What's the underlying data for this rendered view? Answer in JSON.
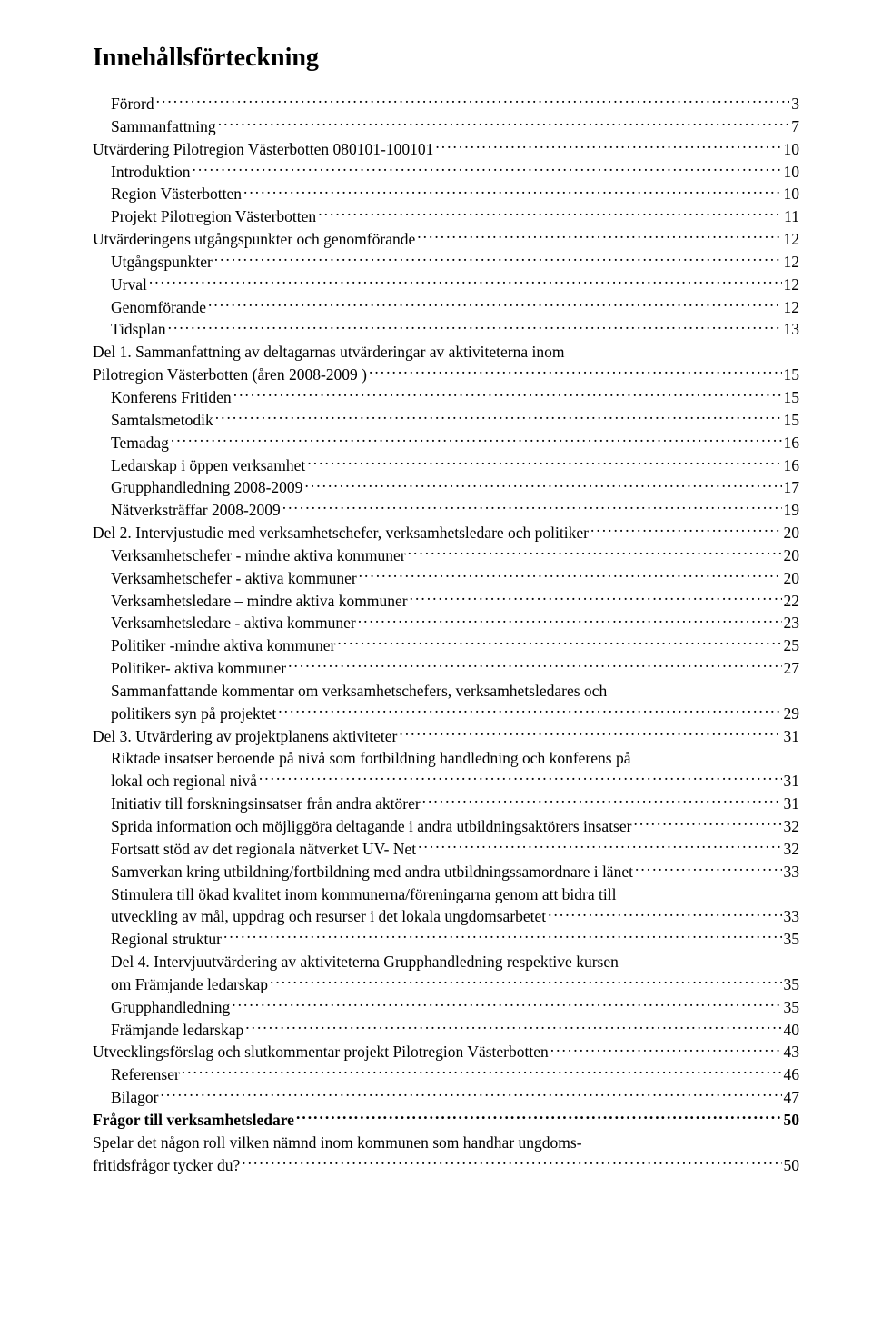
{
  "title": "Innehållsförteckning",
  "toc": [
    {
      "label": "Förord",
      "page": "3",
      "indent": 1,
      "bold": false
    },
    {
      "label": "Sammanfattning",
      "page": "7",
      "indent": 1,
      "bold": false
    },
    {
      "label": "Utvärdering Pilotregion Västerbotten 080101-100101",
      "page": "10",
      "indent": 0,
      "bold": false
    },
    {
      "label": "Introduktion",
      "page": "10",
      "indent": 1,
      "bold": false
    },
    {
      "label": "Region Västerbotten",
      "page": "10",
      "indent": 1,
      "bold": false
    },
    {
      "label": "Projekt Pilotregion Västerbotten",
      "page": "11",
      "indent": 1,
      "bold": false
    },
    {
      "label": "Utvärderingens utgångspunkter och genomförande",
      "page": "12",
      "indent": 0,
      "bold": false
    },
    {
      "label": "Utgångspunkter",
      "page": "12",
      "indent": 1,
      "bold": false
    },
    {
      "label": "Urval",
      "page": "12",
      "indent": 1,
      "bold": false
    },
    {
      "label": "Genomförande",
      "page": "12",
      "indent": 1,
      "bold": false
    },
    {
      "label": "Tidsplan",
      "page": "13",
      "indent": 1,
      "bold": false
    },
    {
      "label": "Del 1. Sammanfattning av deltagarnas utvärderingar av aktiviteterna inom",
      "page": "",
      "indent": 0,
      "bold": false
    },
    {
      "label": "Pilotregion Västerbotten (åren 2008-2009 )",
      "page": "15",
      "indent": 0,
      "bold": false
    },
    {
      "label": "Konferens Fritiden",
      "page": "15",
      "indent": 1,
      "bold": false
    },
    {
      "label": "Samtalsmetodik ",
      "page": "15",
      "indent": 1,
      "bold": false
    },
    {
      "label": "Temadag",
      "page": "16",
      "indent": 1,
      "bold": false
    },
    {
      "label": "Ledarskap i öppen verksamhet",
      "page": "16",
      "indent": 1,
      "bold": false
    },
    {
      "label": "Grupphandledning 2008-2009",
      "page": "17",
      "indent": 1,
      "bold": false
    },
    {
      "label": "Nätverksträffar 2008-2009",
      "page": "19",
      "indent": 1,
      "bold": false
    },
    {
      "label": "Del 2. Intervjustudie med verksamhetschefer, verksamhetsledare och politiker",
      "page": "20",
      "indent": 0,
      "bold": false
    },
    {
      "label": "Verksamhetschefer - mindre aktiva kommuner",
      "page": "20",
      "indent": 1,
      "bold": false
    },
    {
      "label": "Verksamhetschefer - aktiva kommuner",
      "page": "20",
      "indent": 1,
      "bold": false
    },
    {
      "label": "Verksamhetsledare – mindre aktiva kommuner",
      "page": "22",
      "indent": 1,
      "bold": false
    },
    {
      "label": "Verksamhetsledare - aktiva kommuner",
      "page": "23",
      "indent": 1,
      "bold": false
    },
    {
      "label": "Politiker -mindre aktiva kommuner",
      "page": "25",
      "indent": 1,
      "bold": false
    },
    {
      "label": "Politiker- aktiva kommuner",
      "page": "27",
      "indent": 1,
      "bold": false
    },
    {
      "label": "Sammanfattande kommentar om verksamhetschefers, verksamhetsledares och",
      "page": "",
      "indent": 1,
      "bold": false
    },
    {
      "label": "politikers syn på projektet",
      "page": "29",
      "indent": 1,
      "bold": false
    },
    {
      "label": "Del 3. Utvärdering av projektplanens aktiviteter",
      "page": "31",
      "indent": 0,
      "bold": false
    },
    {
      "label": "Riktade insatser beroende på nivå som fortbildning handledning och konferens på",
      "page": "",
      "indent": 1,
      "bold": false
    },
    {
      "label": "lokal och regional nivå",
      "page": "31",
      "indent": 1,
      "bold": false
    },
    {
      "label": "Initiativ till forskningsinsatser från andra aktörer",
      "page": "31",
      "indent": 1,
      "bold": false
    },
    {
      "label": "Sprida information och möjliggöra deltagande i andra utbildningsaktörers insatser",
      "page": "32",
      "indent": 1,
      "bold": false
    },
    {
      "label": "Fortsatt stöd av det regionala nätverket UV- Net",
      "page": "32",
      "indent": 1,
      "bold": false
    },
    {
      "label": "Samverkan kring utbildning/fortbildning med andra utbildningssamordnare i länet",
      "page": "33",
      "indent": 1,
      "bold": false
    },
    {
      "label": "Stimulera till ökad kvalitet inom kommunerna/föreningarna genom att bidra till",
      "page": "",
      "indent": 1,
      "bold": false
    },
    {
      "label": "utveckling av mål, uppdrag och resurser i det lokala ungdomsarbetet",
      "page": "33",
      "indent": 1,
      "bold": false
    },
    {
      "label": "Regional struktur",
      "page": "35",
      "indent": 1,
      "bold": false
    },
    {
      "label": "Del 4. Intervjuutvärdering av aktiviteterna Grupphandledning respektive kursen",
      "page": "",
      "indent": 1,
      "bold": false
    },
    {
      "label": "om Främjande ledarskap",
      "page": "35",
      "indent": 1,
      "bold": false
    },
    {
      "label": "Grupphandledning",
      "page": "35",
      "indent": 1,
      "bold": false
    },
    {
      "label": "Främjande ledarskap",
      "page": "40",
      "indent": 1,
      "bold": false
    },
    {
      "label": "Utvecklingsförslag och slutkommentar projekt Pilotregion Västerbotten",
      "page": "43",
      "indent": 0,
      "bold": false
    },
    {
      "label": "Referenser",
      "page": "46",
      "indent": 1,
      "bold": false
    },
    {
      "label": "Bilagor",
      "page": "47",
      "indent": 1,
      "bold": false
    },
    {
      "label": "Frågor till verksamhetsledare",
      "page": "50",
      "indent": 0,
      "bold": true
    },
    {
      "label": "Spelar det någon roll vilken nämnd inom kommunen som handhar ungdoms-",
      "page": "",
      "indent": 0,
      "bold": false
    },
    {
      "label": "fritidsfrågor tycker du?",
      "page": "50",
      "indent": 0,
      "bold": false
    }
  ]
}
